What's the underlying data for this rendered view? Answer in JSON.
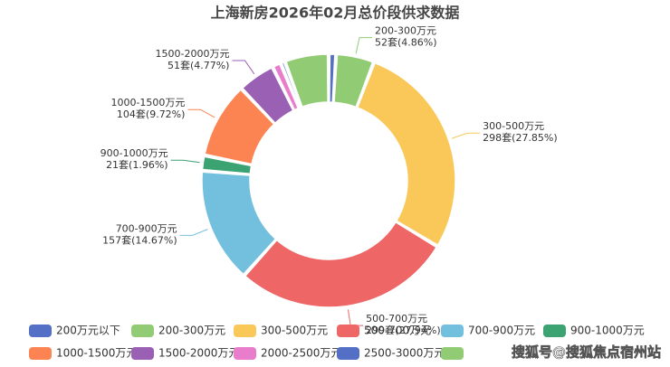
{
  "chart_data": {
    "type": "pie",
    "title": "上海新房2026年02月总价段供求数据",
    "categories": [
      "200万元以下",
      "200-300万元",
      "300-500万元",
      "500-700万元",
      "700-900万元",
      "900-1000万元",
      "1000-1500万元",
      "1500-2000万元",
      "2000-2500万元",
      "2500-3000万元",
      null
    ],
    "values": [
      10,
      52,
      298,
      299,
      157,
      21,
      104,
      51,
      12,
      6,
      60
    ],
    "value_labels": [
      null,
      "52套(4.86%)",
      "298套(27.85%)",
      "299套(27.94%)",
      "157套(14.67%)",
      "21套(1.96%)",
      "104套(9.72%)",
      "51套(4.77%)",
      null,
      null,
      null
    ],
    "colors": [
      "#5470c6",
      "#91cc75",
      "#fac858",
      "#ee6666",
      "#73c0de",
      "#3ba272",
      "#fc8452",
      "#9a60b4",
      "#ea7ccc",
      "#5470c6",
      "#91cc75"
    ],
    "watermark": "搜狐号@搜狐焦点宿州站"
  }
}
